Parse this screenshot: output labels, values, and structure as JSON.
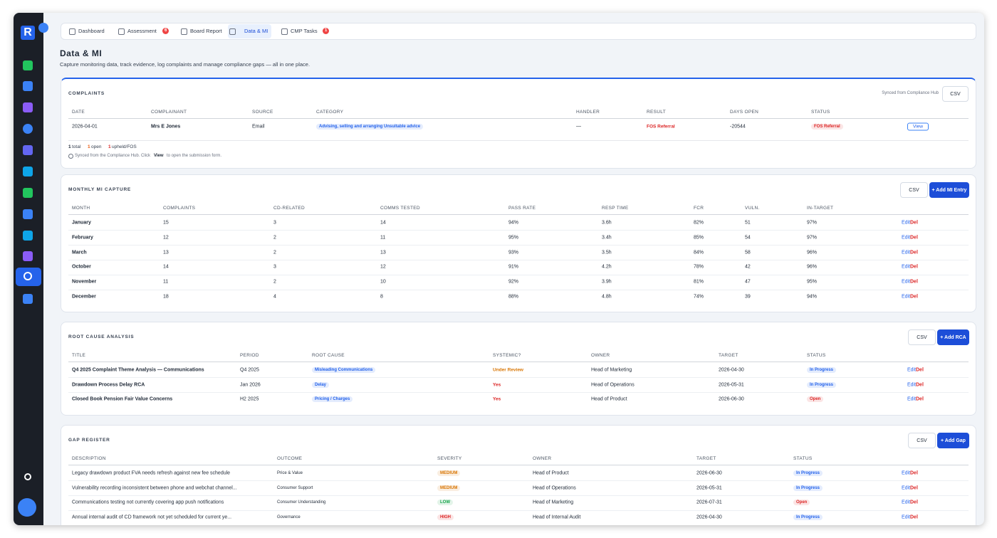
{
  "tabs": [
    {
      "label": "Dashboard"
    },
    {
      "label": "Assessment",
      "badge": "6"
    },
    {
      "label": "Board Report"
    },
    {
      "label": "Data & MI"
    },
    {
      "label": "CMP Tasks",
      "badge": "1"
    }
  ],
  "header": {
    "title": "Data & MI",
    "subtitle": "Capture monitoring data, track evidence, log complaints and manage compliance gaps — all in one place."
  },
  "complaints": {
    "title": "COMPLAINTS",
    "sync": "Synced from Compliance Hub",
    "csv": "CSV",
    "action": "View",
    "columns": [
      "DATE",
      "COMPLAINANT",
      "SOURCE",
      "CATEGORY",
      "HANDLER",
      "RESULT",
      "DAYS OPEN",
      "STATUS"
    ],
    "rows": [
      [
        "2026-04-01",
        "Mrs E Jones",
        "Email",
        {
          "text": "Advising, selling and arranging Unsuitable advice",
          "color": "#2563eb"
        },
        "—",
        {
          "text": "FOS Referral",
          "color": "#dc2626"
        },
        "-20544",
        {
          "text": "FOS Referral",
          "color": "#dc2626"
        }
      ]
    ],
    "summary": {
      "total": "1",
      "total_label": "total",
      "open": "1",
      "open_label": "open",
      "upheld": "1",
      "upheld_label": "upheld/FOS"
    },
    "note": {
      "before": "Synced from the Compliance Hub. Click",
      "bold": "View",
      "after": "to open the submission form."
    }
  },
  "monthly_mi": {
    "title": "MONTHLY MI CAPTURE",
    "csv": "CSV",
    "add": "+ Add MI Entry",
    "edit": "Edit",
    "delete": "Del",
    "columns": [
      "MONTH",
      "COMPLAINTS",
      "CD-RELATED",
      "COMMS TESTED",
      "PASS RATE",
      "RESP TIME",
      "FCR",
      "VULN.",
      "IN-TARGET"
    ],
    "rows": [
      [
        "January",
        "15",
        "3",
        "14",
        "94%",
        "3.6h",
        "82%",
        "51",
        "97%"
      ],
      [
        "February",
        "12",
        "2",
        "11",
        "95%",
        "3.4h",
        "85%",
        "54",
        "97%"
      ],
      [
        "March",
        "13",
        "2",
        "13",
        "93%",
        "3.5h",
        "84%",
        "58",
        "96%"
      ],
      [
        "October",
        "14",
        "3",
        "12",
        "91%",
        "4.2h",
        "78%",
        "42",
        "96%"
      ],
      [
        "November",
        "11",
        "2",
        "10",
        "92%",
        "3.9h",
        "81%",
        "47",
        "95%"
      ],
      [
        "December",
        "18",
        "4",
        "8",
        "88%",
        "4.8h",
        "74%",
        "39",
        "94%"
      ]
    ]
  },
  "root_cause": {
    "title": "ROOT CAUSE ANALYSIS",
    "csv": "CSV",
    "add": "+ Add RCA",
    "edit": "Edit",
    "delete": "Del",
    "columns": [
      "TITLE",
      "PERIOD",
      "ROOT CAUSE",
      "SYSTEMIC?",
      "OWNER",
      "TARGET",
      "STATUS"
    ],
    "rows": [
      [
        "Q4 2025 Complaint Theme Analysis — Communications",
        "Q4 2025",
        {
          "text": "Misleading Communications",
          "color": "#2563eb"
        },
        {
          "text": "Under Review",
          "color": "#d97706"
        },
        "Head of Marketing",
        "2026-04-30",
        {
          "text": "In Progress",
          "color": "#2563eb"
        }
      ],
      [
        "Drawdown Process Delay RCA",
        "Jan 2026",
        {
          "text": "Delay",
          "color": "#2563eb"
        },
        {
          "text": "Yes",
          "color": "#dc2626"
        },
        "Head of Operations",
        "2026-05-31",
        {
          "text": "In Progress",
          "color": "#2563eb"
        }
      ],
      [
        "Closed Book Pension Fair Value Concerns",
        "H2 2025",
        {
          "text": "Pricing / Charges",
          "color": "#2563eb"
        },
        {
          "text": "Yes",
          "color": "#dc2626"
        },
        "Head of Product",
        "2026-06-30",
        {
          "text": "Open",
          "color": "#dc2626"
        }
      ]
    ]
  },
  "gap_register": {
    "title": "GAP REGISTER",
    "csv": "CSV",
    "add": "+ Add Gap",
    "edit": "Edit",
    "delete": "Del",
    "columns": [
      "DESCRIPTION",
      "OUTCOME",
      "SEVERITY",
      "OWNER",
      "TARGET",
      "STATUS"
    ],
    "rows": [
      [
        "Legacy drawdown product FVA needs refresh against new fee schedule",
        "Price & Value",
        {
          "text": "MEDIUM",
          "color": "#d97706"
        },
        "Head of Product",
        "2026-06-30",
        {
          "text": "In Progress",
          "color": "#2563eb"
        }
      ],
      [
        "Vulnerability recording inconsistent between phone and webchat channel...",
        "Consumer Support",
        {
          "text": "MEDIUM",
          "color": "#d97706"
        },
        "Head of Operations",
        "2026-05-31",
        {
          "text": "In Progress",
          "color": "#2563eb"
        }
      ],
      [
        "Communications testing not currently covering app push notifications",
        "Consumer Understanding",
        {
          "text": "LOW",
          "color": "#16a34a"
        },
        "Head of Marketing",
        "2026-07-31",
        {
          "text": "Open",
          "color": "#dc2626"
        }
      ],
      [
        "Annual internal audit of CD framework not yet scheduled for current ye...",
        "Governance",
        {
          "text": "HIGH",
          "color": "#dc2626"
        },
        "Head of Internal Audit",
        "2026-04-30",
        {
          "text": "In Progress",
          "color": "#2563eb"
        }
      ]
    ]
  }
}
